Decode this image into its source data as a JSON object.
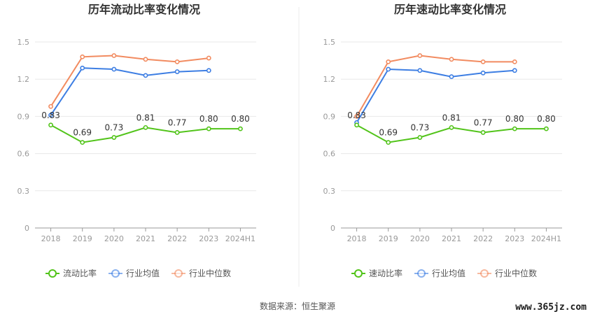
{
  "colors": {
    "primary": "#52c41a",
    "avg": "#3d7ee3",
    "median": "#f28b60",
    "grid": "#e8e8e8",
    "axis": "#999999"
  },
  "source_label": "数据来源：恒生聚源",
  "watermark": "www.365jz.com",
  "chart_data": [
    {
      "type": "line",
      "title": "历年流动比率变化情况",
      "categories": [
        "2018",
        "2019",
        "2020",
        "2021",
        "2022",
        "2023",
        "2024H1"
      ],
      "ylim": [
        0,
        1.5
      ],
      "yticks": [
        "0",
        "0.3",
        "0.6",
        "0.9",
        "1.2",
        "1.5"
      ],
      "series": [
        {
          "name": "流动比率",
          "values": [
            0.83,
            0.69,
            0.73,
            0.81,
            0.77,
            0.8,
            0.8
          ],
          "labels": [
            "0.83",
            "0.69",
            "0.73",
            "0.81",
            "0.77",
            "0.80",
            "0.80"
          ]
        },
        {
          "name": "行业均值",
          "values": [
            0.91,
            1.29,
            1.28,
            1.23,
            1.26,
            1.27,
            null
          ]
        },
        {
          "name": "行业中位数",
          "values": [
            0.98,
            1.38,
            1.39,
            1.36,
            1.34,
            1.37,
            null
          ]
        }
      ]
    },
    {
      "type": "line",
      "title": "历年速动比率变化情况",
      "categories": [
        "2018",
        "2019",
        "2020",
        "2021",
        "2022",
        "2023",
        "2024H1"
      ],
      "ylim": [
        0,
        1.5
      ],
      "yticks": [
        "0",
        "0.3",
        "0.6",
        "0.9",
        "1.2",
        "1.5"
      ],
      "series": [
        {
          "name": "速动比率",
          "values": [
            0.83,
            0.69,
            0.73,
            0.81,
            0.77,
            0.8,
            0.8
          ],
          "labels": [
            "0.83",
            "0.69",
            "0.73",
            "0.81",
            "0.77",
            "0.80",
            "0.80"
          ]
        },
        {
          "name": "行业均值",
          "values": [
            0.85,
            1.28,
            1.27,
            1.22,
            1.25,
            1.27,
            null
          ]
        },
        {
          "name": "行业中位数",
          "values": [
            0.9,
            1.34,
            1.39,
            1.36,
            1.34,
            1.34,
            null
          ]
        }
      ]
    }
  ]
}
